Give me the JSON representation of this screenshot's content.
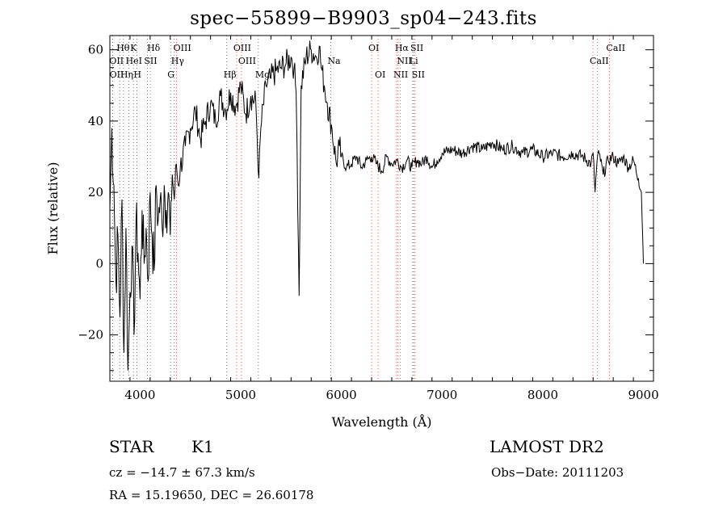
{
  "chart_data": {
    "type": "line",
    "title": "spec−55899−B9903_sp04−243.fits",
    "xlabel": "Wavelength (Å)",
    "ylabel": "Flux (relative)",
    "xlim": [
      3700,
      9100
    ],
    "ylim": [
      -33,
      64
    ],
    "xticks": [
      4000,
      5000,
      6000,
      7000,
      8000,
      9000
    ],
    "yticks": [
      -20,
      0,
      20,
      40,
      60
    ],
    "grid": false,
    "series": [
      {
        "x": [
          3700,
          3720,
          3740,
          3760,
          3780,
          3800,
          3820,
          3840,
          3860,
          3880,
          3900,
          3920,
          3940,
          3960,
          3980,
          4000,
          4020,
          4040,
          4060,
          4080,
          4100,
          4120,
          4140,
          4160,
          4180,
          4200,
          4220,
          4240,
          4260,
          4280,
          4300,
          4320,
          4340,
          4360,
          4380,
          4400,
          4450,
          4500,
          4550,
          4600,
          4650,
          4700,
          4750,
          4800,
          4850,
          4900,
          4950,
          5000,
          5050,
          5100,
          5150,
          5180,
          5200,
          5250,
          5300,
          5350,
          5400,
          5450,
          5500,
          5530,
          5550,
          5560,
          5580,
          5600,
          5650,
          5700,
          5750,
          5780,
          5800,
          5830,
          5860,
          5900,
          5950,
          5980,
          6000,
          6050,
          6100,
          6150,
          6200,
          6250,
          6300,
          6350,
          6400,
          6450,
          6500,
          6550,
          6600,
          6650,
          6700,
          6750,
          6800,
          6850,
          6900,
          6950,
          7000,
          7100,
          7200,
          7300,
          7400,
          7500,
          7600,
          7700,
          7800,
          7900,
          8000,
          8100,
          8200,
          8300,
          8400,
          8480,
          8500,
          8520,
          8540,
          8560,
          8600,
          8650,
          8700,
          8750,
          8800,
          8850,
          8900,
          8950,
          8980,
          9000
        ],
        "y": [
          15,
          38,
          22,
          -5,
          8,
          -15,
          18,
          -25,
          10,
          -30,
          -8,
          5,
          -20,
          12,
          3,
          -10,
          15,
          0,
          10,
          -5,
          20,
          8,
          -2,
          22,
          12,
          18,
          10,
          22,
          15,
          20,
          8,
          25,
          18,
          28,
          22,
          27,
          33,
          38,
          43,
          35,
          40,
          45,
          40,
          47,
          43,
          48,
          44,
          50,
          42,
          47,
          45,
          24,
          38,
          50,
          52,
          54,
          55,
          56,
          58,
          55,
          48,
          32,
          -9,
          50,
          58,
          60,
          58,
          61,
          55,
          50,
          45,
          39,
          28,
          33,
          30,
          27,
          28,
          30,
          27,
          29,
          30,
          28,
          26,
          30,
          28,
          29,
          27,
          29,
          27,
          29,
          28,
          30,
          27,
          29,
          31,
          32,
          31,
          33,
          32,
          34,
          32,
          33,
          31,
          32,
          30,
          31,
          30,
          31,
          30,
          28,
          31,
          20,
          29,
          31,
          25,
          29,
          30,
          28,
          30,
          27,
          29,
          24,
          20,
          0
        ]
      }
    ],
    "line_markers": [
      {
        "label": "Hθ",
        "x": 3798,
        "row": 1
      },
      {
        "label": "K",
        "x": 3934,
        "row": 1
      },
      {
        "label": "Hδ",
        "x": 4102,
        "row": 1
      },
      {
        "label": "OIII",
        "x": 4363,
        "row": 1
      },
      {
        "label": "OIII",
        "x": 4959,
        "row": 1
      },
      {
        "label": "OI",
        "x": 6300,
        "row": 1
      },
      {
        "label": "Hα",
        "x": 6563,
        "row": 1
      },
      {
        "label": "SII",
        "x": 6717,
        "row": 1
      },
      {
        "label": "CaII",
        "x": 8662,
        "row": 1
      },
      {
        "label": "OII",
        "x": 3727,
        "row": 2
      },
      {
        "label": "HeI",
        "x": 3889,
        "row": 2
      },
      {
        "label": "SII",
        "x": 4072,
        "row": 2
      },
      {
        "label": "Hγ",
        "x": 4340,
        "row": 2
      },
      {
        "label": "OIII",
        "x": 5007,
        "row": 2
      },
      {
        "label": "Na",
        "x": 5893,
        "row": 2
      },
      {
        "label": "NII",
        "x": 6584,
        "row": 2
      },
      {
        "label": "Li",
        "x": 6708,
        "row": 2
      },
      {
        "label": "CaII",
        "x": 8498,
        "row": 2
      },
      {
        "label": "OII",
        "x": 3729,
        "row": 3
      },
      {
        "label": "Hη",
        "x": 3835,
        "row": 3
      },
      {
        "label": "H",
        "x": 3968,
        "row": 3
      },
      {
        "label": "G",
        "x": 4304,
        "row": 3
      },
      {
        "label": "Hβ",
        "x": 4861,
        "row": 3
      },
      {
        "label": "Mg",
        "x": 5175,
        "row": 3
      },
      {
        "label": "OI",
        "x": 6364,
        "row": 3
      },
      {
        "label": "NII",
        "x": 6548,
        "row": 3
      },
      {
        "label": "SII",
        "x": 6731,
        "row": 3
      }
    ],
    "emission_lines_x": [
      3727,
      3729,
      4363,
      4959,
      5007,
      6300,
      6364,
      6548,
      6563,
      6584,
      6717,
      6731,
      8498,
      8542,
      8662
    ],
    "absorption_lines_x": [
      3798,
      3835,
      3889,
      3934,
      3968,
      4072,
      4102,
      4304,
      4340,
      4861,
      5175,
      5893,
      6708
    ]
  },
  "info": {
    "class": "STAR",
    "subclass": "K1",
    "survey": "LAMOST DR2",
    "cz": "cz = −14.7 ± 67.3 km/s",
    "obs_date": "Obs−Date: 20111203",
    "coords": "RA =  15.19650, DEC =  26.60178"
  }
}
